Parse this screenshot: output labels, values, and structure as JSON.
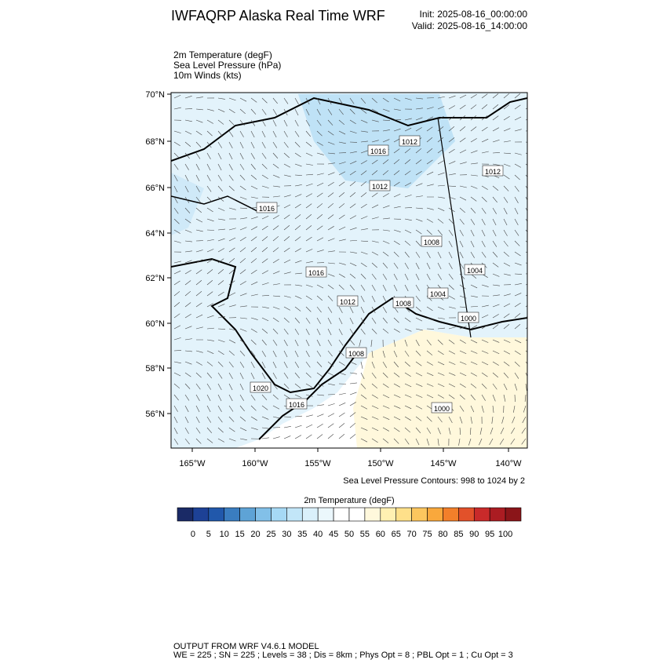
{
  "header": {
    "title": "IWFAQRP Alaska Real Time WRF",
    "init": "Init: 2025-08-16_00:00:00",
    "valid": "Valid: 2025-08-16_14:00:00"
  },
  "fields": [
    "2m Temperature   (degF)",
    "Sea Level Pressure   (hPa)",
    "10m Winds   (kts)"
  ],
  "lat_labels": [
    "70°N",
    "68°N",
    "66°N",
    "64°N",
    "62°N",
    "60°N",
    "58°N",
    "56°N"
  ],
  "lon_labels": [
    "165°W",
    "160°W",
    "155°W",
    "150°W",
    "145°W",
    "140°W"
  ],
  "contour_labels": [
    "1016",
    "1012",
    "1012",
    "1012",
    "1016",
    "1008",
    "1004",
    "1016",
    "1012",
    "1008",
    "1004",
    "1000",
    "1008",
    "1020",
    "1016",
    "1000"
  ],
  "contour_note": "Sea Level Pressure Contours: 998 to 1024 by 2",
  "colorbar": {
    "title": "2m Temperature  (degF)",
    "colors": [
      "#1a2a66",
      "#1d4196",
      "#2158ab",
      "#3a7dc0",
      "#5ea3d6",
      "#82c0e8",
      "#a6d9f5",
      "#c2e6f8",
      "#daf0fa",
      "#ebf7fc",
      "#ffffff",
      "#ffffff",
      "#fff8dc",
      "#fff0b2",
      "#fee08a",
      "#fcc65e",
      "#f9a83c",
      "#f27f2a",
      "#e2512a",
      "#c92a2a",
      "#ab1c22",
      "#8b1519"
    ],
    "labels": [
      "0",
      "5",
      "10",
      "15",
      "20",
      "25",
      "30",
      "35",
      "40",
      "45",
      "50",
      "55",
      "60",
      "65",
      "70",
      "75",
      "80",
      "85",
      "90",
      "95",
      "100"
    ]
  },
  "footer": [
    "OUTPUT FROM WRF V4.6.1 MODEL",
    "WE = 225 ; SN = 225 ; Levels = 38 ; Dis = 8km ; Phys Opt = 8 ; PBL Opt = 1 ; Cu Opt = 3"
  ]
}
